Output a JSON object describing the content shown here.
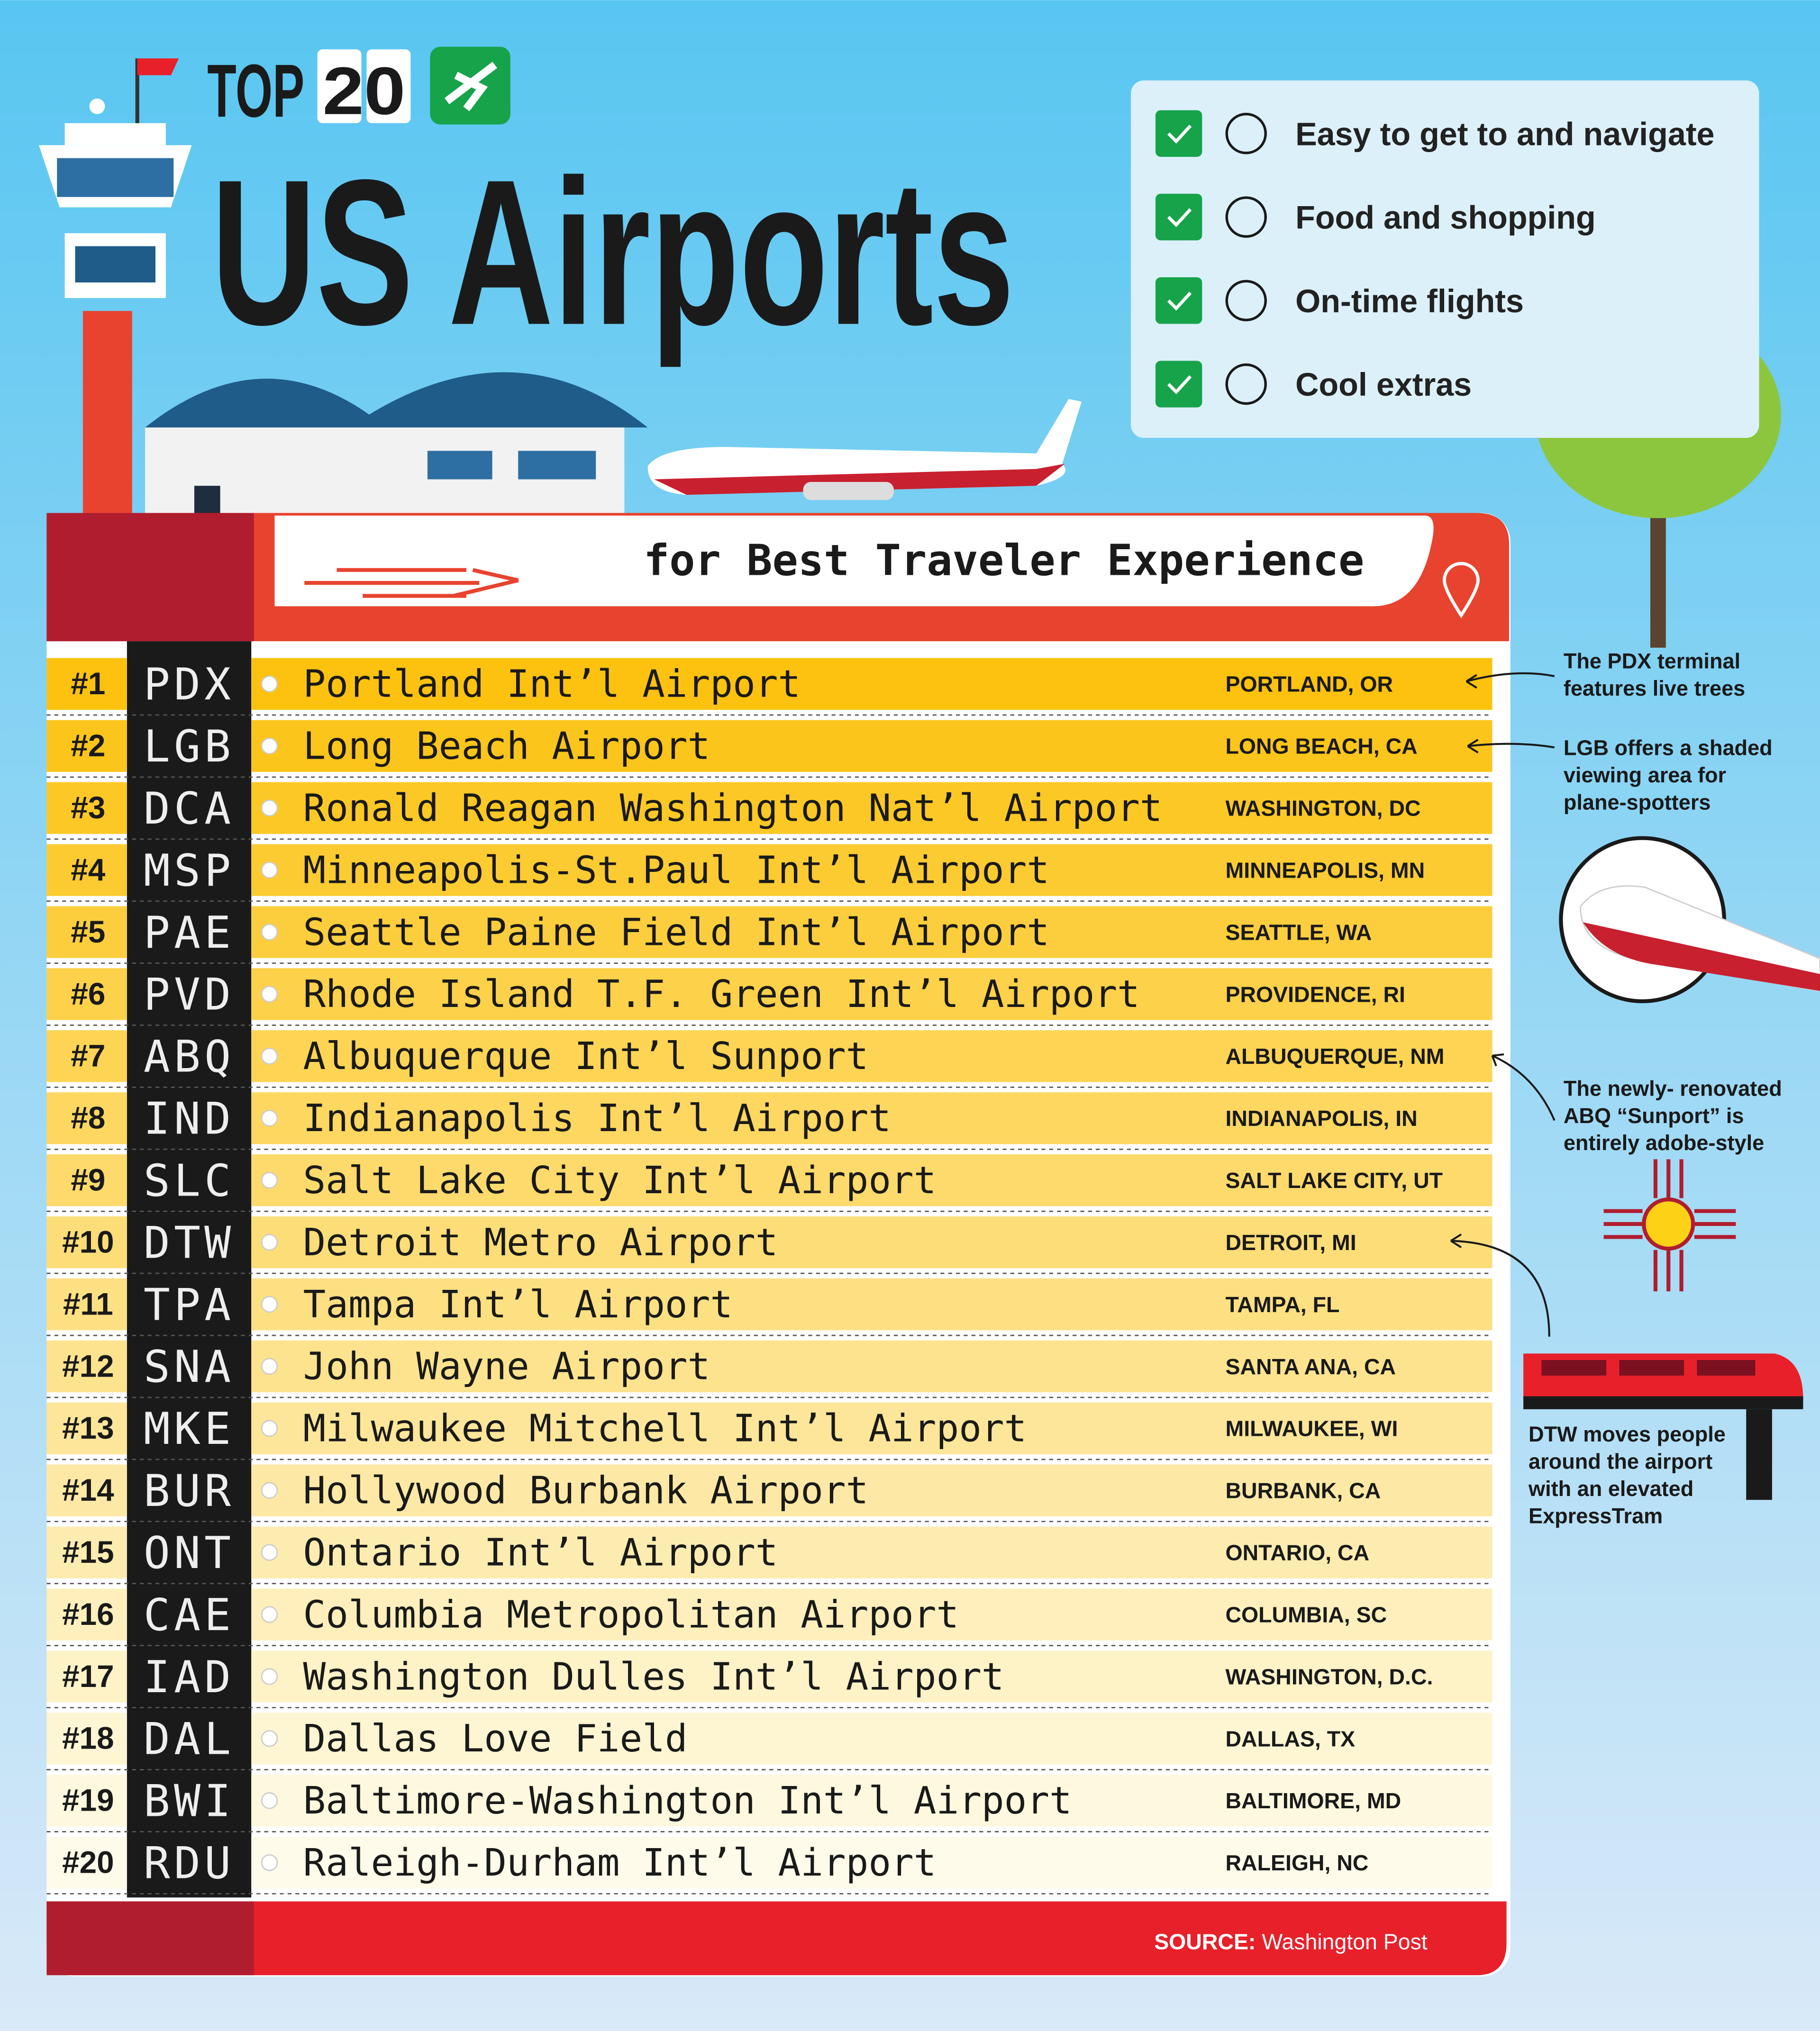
{
  "header": {
    "top_label": "TOP",
    "top_number": "20",
    "title": "US Airports",
    "subtitle": "for Best Traveler Experience"
  },
  "criteria": [
    "Easy to get to and navigate",
    "Food and shopping",
    "On-time flights",
    "Cool extras"
  ],
  "table": {
    "rows": [
      [
        "#1",
        "PDX",
        "Portland Int’l Airport",
        "PORTLAND, OR"
      ],
      [
        "#2",
        "LGB",
        "Long Beach Airport",
        "LONG BEACH, CA"
      ],
      [
        "#3",
        "DCA",
        "Ronald Reagan Washington Nat’l Airport",
        "WASHINGTON, DC"
      ],
      [
        "#4",
        "MSP",
        "Minneapolis-St.Paul Int’l Airport",
        "MINNEAPOLIS, MN"
      ],
      [
        "#5",
        "PAE",
        "Seattle Paine Field Int’l Airport",
        "SEATTLE, WA"
      ],
      [
        "#6",
        "PVD",
        "Rhode Island T.F. Green Int’l Airport",
        "PROVIDENCE, RI"
      ],
      [
        "#7",
        "ABQ",
        "Albuquerque Int’l Sunport",
        "ALBUQUERQUE, NM"
      ],
      [
        "#8",
        "IND",
        "Indianapolis Int’l Airport",
        "INDIANAPOLIS, IN"
      ],
      [
        "#9",
        "SLC",
        "Salt Lake City Int’l Airport",
        "SALT LAKE CITY, UT"
      ],
      [
        "#10",
        "DTW",
        "Detroit Metro Airport",
        "DETROIT, MI"
      ],
      [
        "#11",
        "TPA",
        "Tampa Int’l Airport",
        "TAMPA, FL"
      ],
      [
        "#12",
        "SNA",
        "John Wayne Airport",
        "SANTA ANA, CA"
      ],
      [
        "#13",
        "MKE",
        "Milwaukee Mitchell Int’l Airport",
        "MILWAUKEE, WI"
      ],
      [
        "#14",
        "BUR",
        "Hollywood Burbank Airport",
        "BURBANK, CA"
      ],
      [
        "#15",
        "ONT",
        "Ontario Int’l Airport",
        "ONTARIO, CA"
      ],
      [
        "#16",
        "CAE",
        "Columbia Metropolitan Airport",
        "COLUMBIA, SC"
      ],
      [
        "#17",
        "IAD",
        "Washington Dulles Int’l Airport",
        "WASHINGTON, D.C."
      ],
      [
        "#18",
        "DAL",
        "Dallas Love Field",
        "DALLAS, TX"
      ],
      [
        "#19",
        "BWI",
        "Baltimore-Washington Int’l Airport",
        "BALTIMORE, MD"
      ],
      [
        "#20",
        "RDU",
        "Raleigh-Durham Int’l Airport",
        "RALEIGH, NC"
      ]
    ]
  },
  "annotations": [
    [
      "The PDX terminal",
      "features live trees"
    ],
    [
      "LGB offers a shaded",
      "viewing area for",
      "plane-spotters"
    ],
    [
      "The newly- renovated",
      "ABQ “Sunport” is",
      "entirely adobe-style"
    ],
    [
      "DTW moves people",
      "around the airport",
      "with an elevated",
      "ExpressTram"
    ]
  ],
  "source": {
    "label": "SOURCE:",
    "text": "Washington Post"
  }
}
